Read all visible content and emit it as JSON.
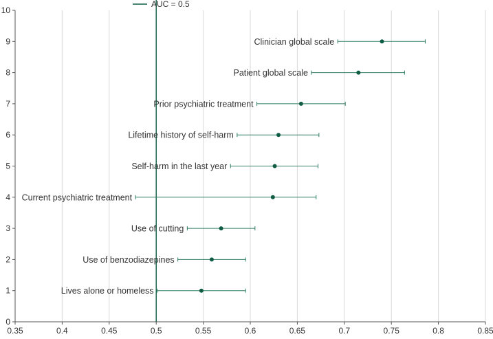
{
  "chart_data": {
    "type": "scatter",
    "subtype": "forest-plot",
    "xlim": [
      0.35,
      0.85
    ],
    "ylim": [
      0,
      10
    ],
    "xticks": [
      0.35,
      0.4,
      0.45,
      0.5,
      0.55,
      0.6,
      0.65,
      0.7,
      0.75,
      0.8,
      0.85
    ],
    "yticks": [
      0,
      1,
      2,
      3,
      4,
      5,
      6,
      7,
      8,
      9,
      10
    ],
    "xtick_labels": [
      "0.35",
      "0.4",
      "0.45",
      "0.5",
      "0.55",
      "0.6",
      "0.65",
      "0.7",
      "0.75",
      "0.8",
      "0.85"
    ],
    "ytick_labels": [
      "0",
      "1",
      "2",
      "3",
      "4",
      "5",
      "6",
      "7",
      "8",
      "9",
      "10"
    ],
    "grid": "vertical",
    "reference_line": {
      "x": 0.5,
      "label": "AUC = 0.5"
    },
    "legend": {
      "position": "top"
    },
    "colors": {
      "marker": "#0f5c45",
      "line": "#2e7d62",
      "grid": "#d9d9d9",
      "axis": "#555555"
    },
    "points": [
      {
        "label": "Lives alone or homeless",
        "y": 1,
        "estimate": 0.548,
        "lower": 0.501,
        "upper": 0.595
      },
      {
        "label": "Use of benzodiazepines",
        "y": 2,
        "estimate": 0.559,
        "lower": 0.523,
        "upper": 0.595
      },
      {
        "label": "Use of cutting",
        "y": 3,
        "estimate": 0.569,
        "lower": 0.533,
        "upper": 0.605
      },
      {
        "label": "Current psychiatric treatment",
        "y": 4,
        "estimate": 0.624,
        "lower": 0.478,
        "upper": 0.67
      },
      {
        "label": "Self-harm in the last year",
        "y": 5,
        "estimate": 0.626,
        "lower": 0.579,
        "upper": 0.672
      },
      {
        "label": "Lifetime history of self-harm",
        "y": 6,
        "estimate": 0.63,
        "lower": 0.586,
        "upper": 0.673
      },
      {
        "label": "Prior psychiatric treatment",
        "y": 7,
        "estimate": 0.654,
        "lower": 0.607,
        "upper": 0.701
      },
      {
        "label": "Patient global scale",
        "y": 8,
        "estimate": 0.715,
        "lower": 0.665,
        "upper": 0.764
      },
      {
        "label": "Clinician global scale",
        "y": 9,
        "estimate": 0.74,
        "lower": 0.693,
        "upper": 0.786
      }
    ]
  }
}
